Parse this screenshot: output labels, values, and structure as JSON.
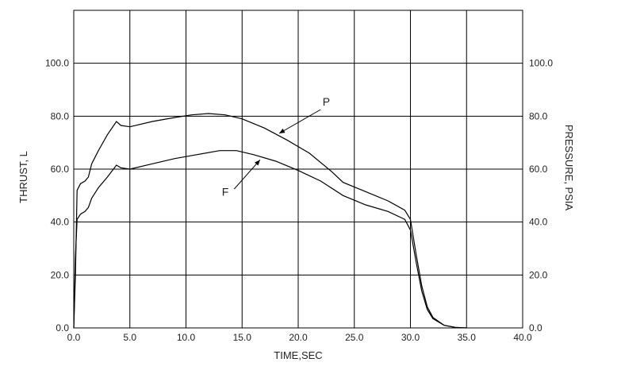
{
  "chart_data": {
    "type": "line",
    "xlabel": "TIME,SEC",
    "ylabel_left": "THRUST, L",
    "ylabel_right": "PRESSURE, PSIA",
    "xlim": [
      0,
      40
    ],
    "ylim": [
      0,
      120
    ],
    "x_ticks": [
      "0.0",
      "5.0",
      "10.0",
      "15.0",
      "20.0",
      "25.0",
      "30.0",
      "35.0",
      "40.0"
    ],
    "y_ticks": [
      "0.0",
      "20.0",
      "40.0",
      "60.0",
      "80.0",
      "100.0"
    ],
    "grid": true,
    "annotations": [
      {
        "text": "P",
        "series": "P"
      },
      {
        "text": "F",
        "series": "F"
      }
    ],
    "series": [
      {
        "name": "P",
        "x": [
          0.0,
          0.15,
          0.3,
          0.6,
          1.0,
          1.3,
          1.6,
          2.2,
          3.0,
          3.8,
          4.2,
          5.0,
          7.0,
          9.0,
          10.5,
          12.0,
          13.5,
          15.0,
          17.0,
          19.0,
          21.0,
          23.0,
          24.0,
          26.0,
          28.0,
          29.5,
          30.0,
          30.5,
          31.0,
          31.5,
          32.0,
          33.0,
          34.0,
          35.0
        ],
        "y": [
          0.0,
          20.0,
          52.0,
          54.5,
          55.5,
          57.0,
          62.0,
          67.0,
          73.0,
          78.0,
          76.5,
          76.0,
          78.0,
          79.5,
          80.5,
          81.0,
          80.5,
          79.0,
          75.5,
          71.0,
          66.0,
          59.0,
          55.0,
          51.5,
          48.0,
          44.5,
          41.0,
          28.0,
          16.0,
          8.0,
          4.0,
          1.0,
          0.2,
          0.0
        ]
      },
      {
        "name": "F",
        "x": [
          0.0,
          0.15,
          0.3,
          0.6,
          1.0,
          1.3,
          1.6,
          2.2,
          3.0,
          3.8,
          4.2,
          5.0,
          7.0,
          9.0,
          11.0,
          13.0,
          14.5,
          16.0,
          18.0,
          20.0,
          22.0,
          24.0,
          26.0,
          28.0,
          29.5,
          30.0,
          30.5,
          31.0,
          31.5,
          32.0,
          33.0,
          34.0,
          35.0
        ],
        "y": [
          0.0,
          27.0,
          41.0,
          43.0,
          44.0,
          45.5,
          49.0,
          53.0,
          57.0,
          61.5,
          60.5,
          60.0,
          62.0,
          64.0,
          65.5,
          67.0,
          67.0,
          65.5,
          63.0,
          59.5,
          55.5,
          50.0,
          46.5,
          44.0,
          41.0,
          37.0,
          25.0,
          14.0,
          7.0,
          3.5,
          1.0,
          0.2,
          0.0
        ]
      }
    ]
  }
}
